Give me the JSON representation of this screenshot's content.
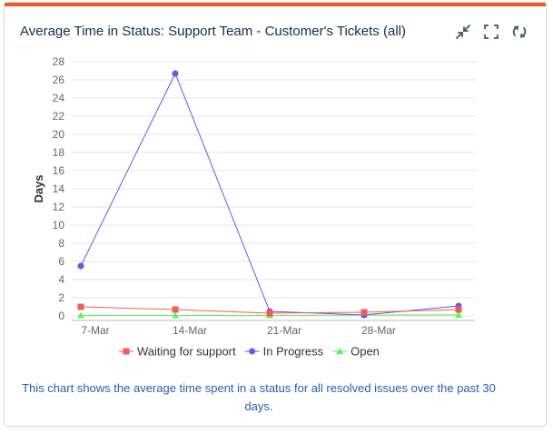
{
  "gadget": {
    "title": "Average Time in Status: Support Team - Customer's Tickets (all)",
    "accent_color": "#f15a24",
    "note": "This chart shows the average time spent in a status for all resolved issues over the past 30 days.",
    "tools": [
      {
        "name": "minimize-icon"
      },
      {
        "name": "maximize-icon"
      },
      {
        "name": "refresh-icon"
      }
    ]
  },
  "chart_data": {
    "type": "line",
    "title": "",
    "xlabel": "",
    "ylabel": "Days",
    "ylim": [
      0,
      28
    ],
    "yticks": [
      0,
      2,
      4,
      6,
      8,
      10,
      12,
      14,
      16,
      18,
      20,
      22,
      24,
      26,
      28
    ],
    "categories": [
      "7-Mar",
      "14-Mar",
      "21-Mar",
      "28-Mar",
      ""
    ],
    "grid": true,
    "legend": "bottom",
    "series": [
      {
        "name": "Waiting for support",
        "color": "#f45b5b",
        "marker": "square",
        "values": [
          1.0,
          0.7,
          0.3,
          0.4,
          0.7
        ]
      },
      {
        "name": "In Progress",
        "color": "#5b5bf4",
        "marker": "circle",
        "values": [
          5.5,
          26.7,
          0.5,
          0.1,
          1.1
        ]
      },
      {
        "name": "Open",
        "color": "#5bf45b",
        "marker": "triangle",
        "values": [
          0.05,
          0.05,
          0.05,
          0.1,
          0.1
        ]
      }
    ]
  }
}
